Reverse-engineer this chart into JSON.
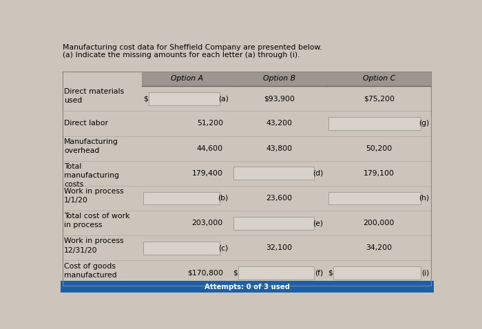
{
  "title1": "Manufacturing cost data for Sheffield Company are presented below.",
  "title2": "(a) Indicate the missing amounts for each letter (a) through (i).",
  "col_headers": [
    "Option A",
    "Option B",
    "Option C"
  ],
  "row_labels": [
    [
      "Direct materials",
      "used"
    ],
    [
      "Direct labor"
    ],
    [
      "Manufacturing",
      "overhead"
    ],
    [
      "Total",
      "manufacturing",
      "costs"
    ],
    [
      "Work in process",
      "1/1/20"
    ],
    [
      "Total cost of work",
      "in process"
    ],
    [
      "Work in process",
      "12/31/20"
    ],
    [
      "Cost of goods",
      "manufactured"
    ]
  ],
  "rows": [
    {
      "optA_prefix": "$",
      "optA_value": "",
      "optA_letter": "(a)",
      "optA_input_box": true,
      "optB_value": "$93,900",
      "optB_letter": "",
      "optB_input_box": false,
      "optC_value": "$75,200",
      "optC_letter": "",
      "optC_input_box": false
    },
    {
      "optA_prefix": "",
      "optA_value": "51,200",
      "optA_letter": "",
      "optA_input_box": false,
      "optB_value": "43,200",
      "optB_letter": "",
      "optB_input_box": false,
      "optC_value": "",
      "optC_letter": "(g)",
      "optC_input_box": true
    },
    {
      "optA_prefix": "",
      "optA_value": "44,600",
      "optA_letter": "",
      "optA_input_box": false,
      "optB_value": "43,800",
      "optB_letter": "",
      "optB_input_box": false,
      "optC_value": "50,200",
      "optC_letter": "",
      "optC_input_box": false
    },
    {
      "optA_prefix": "",
      "optA_value": "179,400",
      "optA_letter": "",
      "optA_input_box": false,
      "optB_value": "",
      "optB_letter": "(d)",
      "optB_input_box": true,
      "optC_value": "179,100",
      "optC_letter": "",
      "optC_input_box": false
    },
    {
      "optA_prefix": "",
      "optA_value": "",
      "optA_letter": "(b)",
      "optA_input_box": true,
      "optB_value": "23,600",
      "optB_letter": "",
      "optB_input_box": false,
      "optC_value": "",
      "optC_letter": "(h)",
      "optC_input_box": true
    },
    {
      "optA_prefix": "",
      "optA_value": "203,000",
      "optA_letter": "",
      "optA_input_box": false,
      "optB_value": "",
      "optB_letter": "(e)",
      "optB_input_box": true,
      "optC_value": "200,000",
      "optC_letter": "",
      "optC_input_box": false
    },
    {
      "optA_prefix": "",
      "optA_value": "",
      "optA_letter": "(c)",
      "optA_input_box": true,
      "optB_value": "32,100",
      "optB_letter": "",
      "optB_input_box": false,
      "optC_value": "34,200",
      "optC_letter": "",
      "optC_input_box": false
    },
    {
      "optA_prefix": "",
      "optA_value": "$170,800",
      "optA_letter": "",
      "optA_input_box": false,
      "optB_prefix": "$",
      "optB_value": "",
      "optB_letter": "(f)",
      "optB_input_box": true,
      "optC_prefix": "$",
      "optC_value": "",
      "optC_letter": "(i)",
      "optC_input_box": true
    }
  ],
  "bg_color": "#cdc5bc",
  "header_bg": "#9e9590",
  "input_box_color": "#d8d2cb",
  "text_color": "#000000",
  "bottom_bar_color": "#1a5fa8",
  "bottom_bar_text": "Attempts: 0 of 3 used",
  "font_size": 7.8
}
